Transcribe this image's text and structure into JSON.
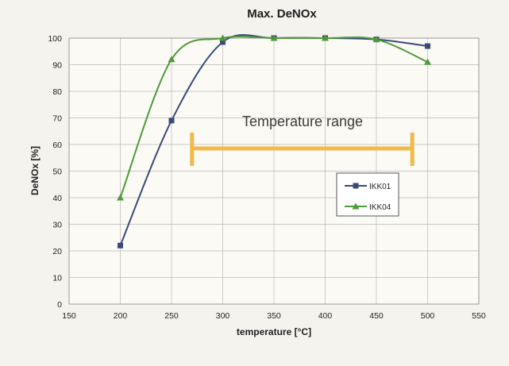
{
  "chart_data": {
    "type": "line",
    "title": "Max. DeNOx",
    "xlabel": "temperature [°C]",
    "ylabel": "DeNOx [%]",
    "xlim": [
      150,
      550
    ],
    "ylim": [
      0,
      100
    ],
    "xticks": [
      150,
      200,
      250,
      300,
      350,
      400,
      450,
      500,
      550
    ],
    "yticks": [
      0,
      10,
      20,
      30,
      40,
      50,
      60,
      70,
      80,
      90,
      100
    ],
    "grid": true,
    "legend_position": "right",
    "series": [
      {
        "name": "IKK01",
        "color": "#3b4a7a",
        "marker": "square",
        "x": [
          200,
          250,
          300,
          350,
          400,
          450,
          500
        ],
        "y": [
          22,
          69,
          98.5,
          100,
          100,
          99.5,
          97
        ]
      },
      {
        "name": "IKK04",
        "color": "#4f9a3a",
        "marker": "triangle",
        "x": [
          200,
          250,
          300,
          350,
          400,
          450,
          500
        ],
        "y": [
          40,
          92,
          100,
          100,
          100,
          99.5,
          91
        ]
      }
    ],
    "annotation": {
      "text": "Temperature range",
      "x_start": 270,
      "x_end": 485,
      "y": 58.5,
      "color": "#f2b94a"
    }
  }
}
